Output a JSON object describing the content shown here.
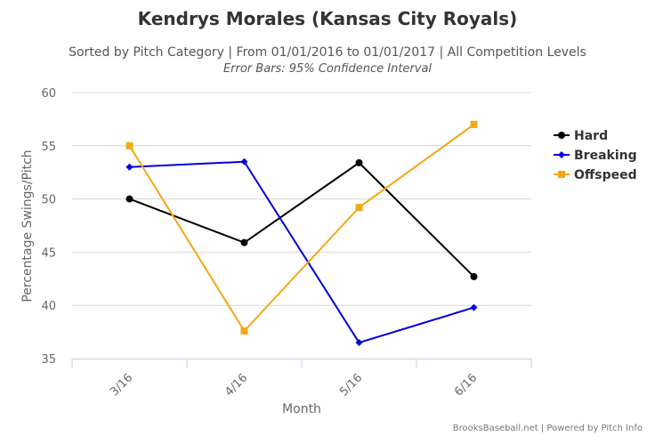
{
  "chart_data": {
    "type": "line",
    "title": "Kendrys Morales (Kansas City Royals)",
    "subtitle": "Sorted by Pitch Category | From 01/01/2016 to 01/01/2017 | All Competition Levels",
    "subtitle2": "Error Bars: 95% Confidence Interval",
    "xlabel": "Month",
    "ylabel": "Percentage Swings/Pitch",
    "categories": [
      "3/16",
      "4/16",
      "5/16",
      "6/16"
    ],
    "ylim": [
      35,
      60
    ],
    "yticks": [
      "35",
      "40",
      "45",
      "50",
      "55",
      "60"
    ],
    "grid": true,
    "legend_position": "right",
    "series": [
      {
        "name": "Hard",
        "color": "#000000",
        "marker": "circle",
        "values": [
          50.0,
          45.9,
          53.4,
          42.7
        ]
      },
      {
        "name": "Breaking",
        "color": "#0000dd",
        "marker": "diamond",
        "values": [
          53.0,
          53.5,
          36.5,
          39.8
        ]
      },
      {
        "name": "Offspeed",
        "color": "#f5a714",
        "marker": "square",
        "values": [
          55.0,
          37.6,
          49.2,
          57.0
        ]
      }
    ],
    "credit": "BrooksBaseball.net | Powered by Pitch Info"
  }
}
